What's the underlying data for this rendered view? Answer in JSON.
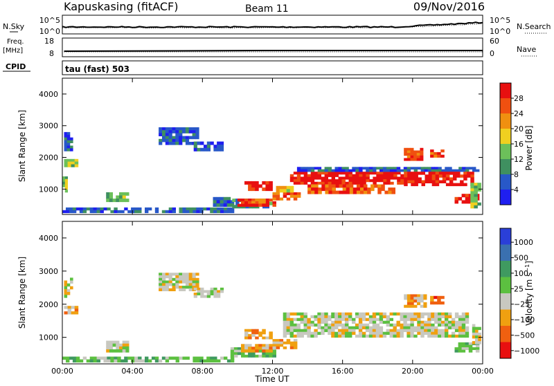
{
  "header": {
    "site": "Kapuskasing (fitACF)",
    "beam": "Beam 11",
    "date": "09/Nov/2016"
  },
  "top_panels": {
    "nsky_label": "N.Sky",
    "nsearch_label": "N.Search",
    "freq_label_1": "Freq.",
    "freq_label_2": "[MHz]",
    "nave_label": "Nave",
    "cpid_label": "CPID",
    "cpid_value": "tau (fast) 503",
    "noise_left_ticks": [
      "10^5",
      "10^0"
    ],
    "noise_right_ticks": [
      "10^5",
      "10^0"
    ],
    "freq_left_ticks": [
      "18",
      "8"
    ],
    "freq_right_ticks": [
      "60",
      "0"
    ]
  },
  "colors": {
    "power": [
      "#1f1ff0",
      "#2858c8",
      "#3f9060",
      "#6cc05a",
      "#f0d020",
      "#f09010",
      "#f05010",
      "#e81010"
    ],
    "velocity": [
      "#2a3fd8",
      "#3a70b0",
      "#3f9a60",
      "#5cc040",
      "#c8c8c0",
      "#f0a010",
      "#f06010",
      "#e81010"
    ],
    "ground": "#c8c8c0"
  },
  "chart_data": [
    {
      "type": "heatmap",
      "name": "power",
      "ylabel": "Slant Range [km]",
      "yticks": [
        "1000",
        "2000",
        "3000",
        "4000"
      ],
      "ylim": [
        200,
        4500
      ],
      "colorbar_label": "Power [dB]",
      "colorbar_ticks": [
        "4",
        "8",
        "12",
        "16",
        "20",
        "24",
        "28"
      ],
      "colorbar_range": [
        0,
        32
      ],
      "regions": [
        {
          "t0": 0.0,
          "t1": 0.3,
          "r0": 900,
          "r1": 1400,
          "lvl": 3
        },
        {
          "t0": 0.1,
          "t1": 0.9,
          "r0": 1700,
          "r1": 1950,
          "lvl": 3
        },
        {
          "t0": 0.1,
          "t1": 0.6,
          "r0": 2200,
          "r1": 2800,
          "lvl": 1
        },
        {
          "t0": 0.0,
          "t1": 9.8,
          "r0": 250,
          "r1": 420,
          "lvl": 1
        },
        {
          "t0": 2.5,
          "t1": 3.8,
          "r0": 600,
          "r1": 900,
          "lvl": 3
        },
        {
          "t0": 5.5,
          "t1": 7.8,
          "r0": 2400,
          "r1": 2950,
          "lvl": 1
        },
        {
          "t0": 7.5,
          "t1": 9.2,
          "r0": 2200,
          "r1": 2500,
          "lvl": 1
        },
        {
          "t0": 8.6,
          "t1": 9.8,
          "r0": 450,
          "r1": 750,
          "lvl": 1
        },
        {
          "t0": 9.7,
          "t1": 12.0,
          "r0": 400,
          "r1": 700,
          "lvl": 2
        },
        {
          "t0": 10.0,
          "t1": 12.2,
          "r0": 450,
          "r1": 700,
          "lvl": 7
        },
        {
          "t0": 10.6,
          "t1": 11.6,
          "r0": 550,
          "r1": 700,
          "lvl": 5
        },
        {
          "t0": 10.4,
          "t1": 12.0,
          "r0": 950,
          "r1": 1250,
          "lvl": 7
        },
        {
          "t0": 12.0,
          "t1": 13.6,
          "r0": 650,
          "r1": 900,
          "lvl": 6
        },
        {
          "t0": 12.2,
          "t1": 13.2,
          "r0": 900,
          "r1": 1100,
          "lvl": 4
        },
        {
          "t0": 13.0,
          "t1": 19.5,
          "r0": 1150,
          "r1": 1550,
          "lvl": 7
        },
        {
          "t0": 14.0,
          "t1": 19.0,
          "r0": 850,
          "r1": 1150,
          "lvl": 6
        },
        {
          "t0": 13.4,
          "t1": 23.8,
          "r0": 1550,
          "r1": 1700,
          "lvl": 1
        },
        {
          "t0": 19.5,
          "t1": 23.5,
          "r0": 1100,
          "r1": 1550,
          "lvl": 7
        },
        {
          "t0": 19.5,
          "t1": 20.6,
          "r0": 1900,
          "r1": 2300,
          "lvl": 6
        },
        {
          "t0": 21.0,
          "t1": 21.8,
          "r0": 2000,
          "r1": 2250,
          "lvl": 6
        },
        {
          "t0": 22.4,
          "t1": 23.8,
          "r0": 550,
          "r1": 850,
          "lvl": 7
        },
        {
          "t0": 23.3,
          "t1": 23.9,
          "r0": 400,
          "r1": 1200,
          "lvl": 3
        }
      ]
    },
    {
      "type": "heatmap",
      "name": "velocity",
      "ylabel": "Slant Range [km]",
      "yticks": [
        "1000",
        "2000",
        "3000",
        "4000"
      ],
      "ylim": [
        200,
        4500
      ],
      "xlabel": "Time UT",
      "xticks": [
        "00:00",
        "04:00",
        "08:00",
        "12:00",
        "16:00",
        "20:00",
        "00:00"
      ],
      "xlim": [
        0,
        24
      ],
      "colorbar_label": "Velocity [m s^-1]",
      "colorbar_ticks": [
        "1000",
        "500",
        "100",
        "25",
        "−25",
        "−100",
        "−500",
        "−1000"
      ],
      "regions": [
        {
          "t0": 0.1,
          "t1": 0.9,
          "r0": 1700,
          "r1": 1950,
          "lvl": 5
        },
        {
          "t0": 0.1,
          "t1": 0.6,
          "r0": 2200,
          "r1": 2800,
          "lvl": 4
        },
        {
          "t0": 0.0,
          "t1": 9.8,
          "r0": 250,
          "r1": 420,
          "lvl": 3
        },
        {
          "t0": 2.5,
          "t1": 3.8,
          "r0": 550,
          "r1": 900,
          "lvl": 4
        },
        {
          "t0": 5.5,
          "t1": 7.8,
          "r0": 2400,
          "r1": 2950,
          "lvl": 4
        },
        {
          "t0": 7.5,
          "t1": 9.2,
          "r0": 2200,
          "r1": 2500,
          "lvl": 4
        },
        {
          "t0": 9.6,
          "t1": 12.2,
          "r0": 400,
          "r1": 700,
          "lvl": 3
        },
        {
          "t0": 10.2,
          "t1": 12.0,
          "r0": 550,
          "r1": 800,
          "lvl": 5
        },
        {
          "t0": 10.4,
          "t1": 12.0,
          "r0": 950,
          "r1": 1250,
          "lvl": 5
        },
        {
          "t0": 12.0,
          "t1": 13.4,
          "r0": 650,
          "r1": 950,
          "lvl": 5
        },
        {
          "t0": 12.6,
          "t1": 23.2,
          "r0": 1000,
          "r1": 1750,
          "lvl": 4
        },
        {
          "t0": 19.5,
          "t1": 20.8,
          "r0": 1900,
          "r1": 2300,
          "lvl": 5
        },
        {
          "t0": 21.0,
          "t1": 21.8,
          "r0": 2000,
          "r1": 2250,
          "lvl": 6
        },
        {
          "t0": 22.4,
          "t1": 23.8,
          "r0": 550,
          "r1": 850,
          "lvl": 3
        },
        {
          "t0": 23.4,
          "t1": 23.9,
          "r0": 800,
          "r1": 1400,
          "lvl": 4
        }
      ]
    }
  ]
}
